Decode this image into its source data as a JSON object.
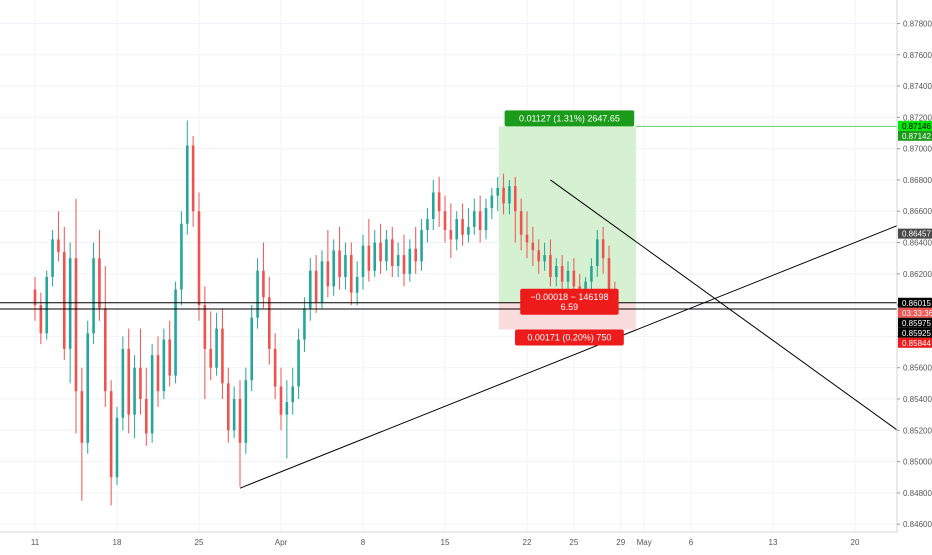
{
  "chart_data": {
    "type": "candlestick",
    "title": "",
    "colors": {
      "up": "#26a69a",
      "down": "#ef5350",
      "profit_zone": "#d6f0d2",
      "loss_zone": "#fbdcdc",
      "profit_label_bg": "#1a9c1a",
      "loss_label_bg": "#ee1b1b",
      "trendline": "#000000",
      "grid": "#f0f3fa",
      "axis_text": "#555555"
    },
    "y_axis": {
      "ylim": [
        0.8455,
        0.8795
      ],
      "tick_labels": [
        "0.87800",
        "0.87600",
        "0.87400",
        "0.87200",
        "0.87000",
        "0.86800",
        "0.86600",
        "0.86400",
        "0.86200",
        "0.86000",
        "0.85800",
        "0.85600",
        "0.85400",
        "0.85200",
        "0.85000",
        "0.84800",
        "0.84600"
      ],
      "tick_values": [
        0.878,
        0.876,
        0.874,
        0.872,
        0.87,
        0.868,
        0.866,
        0.864,
        0.862,
        0.86,
        0.858,
        0.856,
        0.854,
        0.852,
        0.85,
        0.848,
        0.846
      ]
    },
    "x_axis": {
      "labels": [
        "11",
        "18",
        "25",
        "Apr",
        "8",
        "15",
        "22",
        "25",
        "29",
        "May",
        "6",
        "13",
        "20"
      ],
      "label_positions_days": [
        0,
        7,
        14,
        21,
        28,
        35,
        42,
        46,
        50,
        52,
        56,
        63,
        70
      ]
    },
    "price_markers": [
      {
        "label": "0.87146",
        "value": 0.87146,
        "bg": "#00e600",
        "fg": "#000000"
      },
      {
        "label": "0.87142",
        "value": 0.87142,
        "bg": "#1a9c1a",
        "fg": "#ffffff"
      },
      {
        "label": "0.86457",
        "value": 0.86457,
        "bg": "#4a4a4a",
        "fg": "#ffffff"
      },
      {
        "label": "0.86015",
        "value": 0.86015,
        "bg": "#000000",
        "fg": "#ffffff"
      },
      {
        "label": "03:33:36",
        "value": 0.85965,
        "bg": "#ef5350",
        "fg": "#ffffff"
      },
      {
        "label": "0.85975",
        "value": 0.85975,
        "bg": "#000000",
        "fg": "#ffffff",
        "offset": 1
      },
      {
        "label": "0.85925",
        "value": 0.85925,
        "bg": "#000000",
        "fg": "#ffffff",
        "offset": 1
      },
      {
        "label": "0.85844",
        "value": 0.85844,
        "bg": "#ee1b1b",
        "fg": "#ffffff",
        "offset": 1
      }
    ],
    "horizontal_lines": [
      0.86015,
      0.85975
    ],
    "trendlines": [
      {
        "x1": 17.5,
        "y1": 0.8483,
        "x2": 74,
        "y2": 0.8652
      },
      {
        "x1": 44,
        "y1": 0.868,
        "x2": 74,
        "y2": 0.8518
      }
    ],
    "position": {
      "entry": 0.86015,
      "target": 0.87142,
      "stop": 0.85844,
      "start_day": 39.6,
      "end_day": 51.3,
      "profit_label": "0.01127 (1.31%) 2647.65",
      "current_label_line1": "−0.00018 ~ 146198",
      "current_label_line2": "6.59",
      "loss_label": "0.00171 (0.20%) 750"
    },
    "ohlc_series": [
      {
        "d": 0,
        "o": 0.861,
        "h": 0.8618,
        "c": 0.86,
        "l": 0.859
      },
      {
        "d": 0.5,
        "o": 0.86,
        "h": 0.8608,
        "c": 0.8582,
        "l": 0.8575
      },
      {
        "d": 1,
        "o": 0.8582,
        "h": 0.8622,
        "c": 0.8618,
        "l": 0.8578
      },
      {
        "d": 1.5,
        "o": 0.8618,
        "h": 0.8648,
        "c": 0.8642,
        "l": 0.8612
      },
      {
        "d": 2,
        "o": 0.8642,
        "h": 0.866,
        "c": 0.8634,
        "l": 0.8628
      },
      {
        "d": 2.5,
        "o": 0.8634,
        "h": 0.865,
        "c": 0.8572,
        "l": 0.8565
      },
      {
        "d": 3,
        "o": 0.8572,
        "h": 0.864,
        "c": 0.863,
        "l": 0.855
      },
      {
        "d": 3.5,
        "o": 0.863,
        "h": 0.8668,
        "c": 0.8545,
        "l": 0.8518
      },
      {
        "d": 4,
        "o": 0.8545,
        "h": 0.856,
        "c": 0.8512,
        "l": 0.8475
      },
      {
        "d": 4.5,
        "o": 0.8512,
        "h": 0.859,
        "c": 0.8582,
        "l": 0.8505
      },
      {
        "d": 5,
        "o": 0.8582,
        "h": 0.864,
        "c": 0.863,
        "l": 0.8575
      },
      {
        "d": 5.5,
        "o": 0.863,
        "h": 0.8648,
        "c": 0.8598,
        "l": 0.859
      },
      {
        "d": 6,
        "o": 0.8598,
        "h": 0.8625,
        "c": 0.8545,
        "l": 0.8535
      },
      {
        "d": 6.5,
        "o": 0.8545,
        "h": 0.8552,
        "c": 0.849,
        "l": 0.8472
      },
      {
        "d": 7,
        "o": 0.849,
        "h": 0.8535,
        "c": 0.8528,
        "l": 0.8485
      },
      {
        "d": 7.5,
        "o": 0.8528,
        "h": 0.858,
        "c": 0.8572,
        "l": 0.852
      },
      {
        "d": 8,
        "o": 0.8572,
        "h": 0.8585,
        "c": 0.853,
        "l": 0.8518
      },
      {
        "d": 8.5,
        "o": 0.853,
        "h": 0.8568,
        "c": 0.856,
        "l": 0.8515
      },
      {
        "d": 9,
        "o": 0.856,
        "h": 0.8585,
        "c": 0.854,
        "l": 0.853
      },
      {
        "d": 9.5,
        "o": 0.854,
        "h": 0.856,
        "c": 0.8518,
        "l": 0.851
      },
      {
        "d": 10,
        "o": 0.8518,
        "h": 0.8575,
        "c": 0.8568,
        "l": 0.8512
      },
      {
        "d": 10.5,
        "o": 0.8568,
        "h": 0.858,
        "c": 0.8545,
        "l": 0.8535
      },
      {
        "d": 11,
        "o": 0.8545,
        "h": 0.8585,
        "c": 0.8578,
        "l": 0.854
      },
      {
        "d": 11.5,
        "o": 0.8578,
        "h": 0.859,
        "c": 0.8555,
        "l": 0.8548
      },
      {
        "d": 12,
        "o": 0.8555,
        "h": 0.8615,
        "c": 0.861,
        "l": 0.855
      },
      {
        "d": 12.5,
        "o": 0.861,
        "h": 0.866,
        "c": 0.8652,
        "l": 0.86
      },
      {
        "d": 13,
        "o": 0.8652,
        "h": 0.8718,
        "c": 0.8702,
        "l": 0.8645
      },
      {
        "d": 13.5,
        "o": 0.8702,
        "h": 0.8708,
        "c": 0.866,
        "l": 0.865
      },
      {
        "d": 14,
        "o": 0.866,
        "h": 0.8672,
        "c": 0.86,
        "l": 0.859
      },
      {
        "d": 14.5,
        "o": 0.86,
        "h": 0.8612,
        "c": 0.8572,
        "l": 0.854
      },
      {
        "d": 15,
        "o": 0.8572,
        "h": 0.8596,
        "c": 0.856,
        "l": 0.8552
      },
      {
        "d": 15.5,
        "o": 0.856,
        "h": 0.8595,
        "c": 0.8585,
        "l": 0.8555
      },
      {
        "d": 16,
        "o": 0.8585,
        "h": 0.8598,
        "c": 0.855,
        "l": 0.854
      },
      {
        "d": 16.5,
        "o": 0.855,
        "h": 0.856,
        "c": 0.852,
        "l": 0.8512
      },
      {
        "d": 17,
        "o": 0.852,
        "h": 0.8548,
        "c": 0.854,
        "l": 0.8515
      },
      {
        "d": 17.5,
        "o": 0.854,
        "h": 0.8552,
        "c": 0.8512,
        "l": 0.8484
      },
      {
        "d": 18,
        "o": 0.8512,
        "h": 0.856,
        "c": 0.8552,
        "l": 0.8505
      },
      {
        "d": 18.5,
        "o": 0.8552,
        "h": 0.86,
        "c": 0.8592,
        "l": 0.8545
      },
      {
        "d": 19,
        "o": 0.8592,
        "h": 0.863,
        "c": 0.8622,
        "l": 0.8585
      },
      {
        "d": 19.5,
        "o": 0.8622,
        "h": 0.864,
        "c": 0.8605,
        "l": 0.8598
      },
      {
        "d": 20,
        "o": 0.8605,
        "h": 0.8618,
        "c": 0.8572,
        "l": 0.8562
      },
      {
        "d": 20.5,
        "o": 0.8572,
        "h": 0.8582,
        "c": 0.8548,
        "l": 0.854
      },
      {
        "d": 21,
        "o": 0.8548,
        "h": 0.856,
        "c": 0.853,
        "l": 0.852
      },
      {
        "d": 21.5,
        "o": 0.853,
        "h": 0.8552,
        "c": 0.8538,
        "l": 0.8502
      },
      {
        "d": 22,
        "o": 0.8538,
        "h": 0.856,
        "c": 0.8548,
        "l": 0.853
      },
      {
        "d": 22.5,
        "o": 0.8548,
        "h": 0.8585,
        "c": 0.8578,
        "l": 0.854
      },
      {
        "d": 23,
        "o": 0.8578,
        "h": 0.8605,
        "c": 0.8598,
        "l": 0.857
      },
      {
        "d": 23.5,
        "o": 0.8598,
        "h": 0.863,
        "c": 0.8622,
        "l": 0.859
      },
      {
        "d": 24,
        "o": 0.8622,
        "h": 0.8632,
        "c": 0.8602,
        "l": 0.8595
      },
      {
        "d": 24.5,
        "o": 0.8602,
        "h": 0.8635,
        "c": 0.8628,
        "l": 0.8598
      },
      {
        "d": 25,
        "o": 0.8628,
        "h": 0.8648,
        "c": 0.8612,
        "l": 0.8605
      },
      {
        "d": 25.5,
        "o": 0.8612,
        "h": 0.8642,
        "c": 0.8635,
        "l": 0.8606
      },
      {
        "d": 26,
        "o": 0.8635,
        "h": 0.865,
        "c": 0.8618,
        "l": 0.861
      },
      {
        "d": 26.5,
        "o": 0.8618,
        "h": 0.864,
        "c": 0.8632,
        "l": 0.861
      },
      {
        "d": 27,
        "o": 0.8632,
        "h": 0.864,
        "c": 0.8608,
        "l": 0.86
      },
      {
        "d": 27.5,
        "o": 0.8608,
        "h": 0.8628,
        "c": 0.8618,
        "l": 0.86
      },
      {
        "d": 28,
        "o": 0.8618,
        "h": 0.8645,
        "c": 0.8638,
        "l": 0.861
      },
      {
        "d": 28.5,
        "o": 0.8638,
        "h": 0.8655,
        "c": 0.8622,
        "l": 0.8615
      },
      {
        "d": 29,
        "o": 0.8622,
        "h": 0.8648,
        "c": 0.864,
        "l": 0.8618
      },
      {
        "d": 29.5,
        "o": 0.864,
        "h": 0.8652,
        "c": 0.8628,
        "l": 0.862
      },
      {
        "d": 30,
        "o": 0.8628,
        "h": 0.8648,
        "c": 0.8642,
        "l": 0.8622
      },
      {
        "d": 30.5,
        "o": 0.8642,
        "h": 0.865,
        "c": 0.8625,
        "l": 0.8618
      },
      {
        "d": 31,
        "o": 0.8625,
        "h": 0.864,
        "c": 0.8632,
        "l": 0.8618
      },
      {
        "d": 31.5,
        "o": 0.8632,
        "h": 0.8645,
        "c": 0.862,
        "l": 0.8612
      },
      {
        "d": 32,
        "o": 0.862,
        "h": 0.8642,
        "c": 0.8636,
        "l": 0.8615
      },
      {
        "d": 32.5,
        "o": 0.8636,
        "h": 0.865,
        "c": 0.8628,
        "l": 0.862
      },
      {
        "d": 33,
        "o": 0.8628,
        "h": 0.8655,
        "c": 0.8648,
        "l": 0.8622
      },
      {
        "d": 33.5,
        "o": 0.8648,
        "h": 0.8662,
        "c": 0.8655,
        "l": 0.864
      },
      {
        "d": 34,
        "o": 0.8655,
        "h": 0.868,
        "c": 0.8672,
        "l": 0.8648
      },
      {
        "d": 34.5,
        "o": 0.8672,
        "h": 0.8682,
        "c": 0.866,
        "l": 0.865
      },
      {
        "d": 35,
        "o": 0.866,
        "h": 0.867,
        "c": 0.8648,
        "l": 0.864
      },
      {
        "d": 35.5,
        "o": 0.8648,
        "h": 0.8665,
        "c": 0.8642,
        "l": 0.863
      },
      {
        "d": 36,
        "o": 0.8642,
        "h": 0.866,
        "c": 0.8655,
        "l": 0.8635
      },
      {
        "d": 36.5,
        "o": 0.8655,
        "h": 0.8665,
        "c": 0.8645,
        "l": 0.8638
      },
      {
        "d": 37,
        "o": 0.8645,
        "h": 0.8662,
        "c": 0.865,
        "l": 0.864
      },
      {
        "d": 37.5,
        "o": 0.865,
        "h": 0.8668,
        "c": 0.866,
        "l": 0.8645
      },
      {
        "d": 38,
        "o": 0.866,
        "h": 0.867,
        "c": 0.8648,
        "l": 0.864
      },
      {
        "d": 38.5,
        "o": 0.8648,
        "h": 0.8668,
        "c": 0.8662,
        "l": 0.8642
      },
      {
        "d": 39,
        "o": 0.8662,
        "h": 0.8675,
        "c": 0.867,
        "l": 0.8655
      },
      {
        "d": 39.5,
        "o": 0.867,
        "h": 0.8682,
        "c": 0.8675,
        "l": 0.866
      },
      {
        "d": 40,
        "o": 0.8675,
        "h": 0.8684,
        "c": 0.8665,
        "l": 0.8658
      },
      {
        "d": 40.5,
        "o": 0.8665,
        "h": 0.868,
        "c": 0.8676,
        "l": 0.8658
      },
      {
        "d": 41,
        "o": 0.8676,
        "h": 0.8682,
        "c": 0.866,
        "l": 0.864
      },
      {
        "d": 41.5,
        "o": 0.866,
        "h": 0.8668,
        "c": 0.8645,
        "l": 0.8635
      },
      {
        "d": 42,
        "o": 0.8645,
        "h": 0.866,
        "c": 0.864,
        "l": 0.863
      },
      {
        "d": 42.5,
        "o": 0.864,
        "h": 0.865,
        "c": 0.8635,
        "l": 0.8625
      },
      {
        "d": 43,
        "o": 0.8635,
        "h": 0.8642,
        "c": 0.8628,
        "l": 0.862
      },
      {
        "d": 43.5,
        "o": 0.8628,
        "h": 0.864,
        "c": 0.8632,
        "l": 0.8622
      },
      {
        "d": 44,
        "o": 0.8632,
        "h": 0.8642,
        "c": 0.8618,
        "l": 0.8612
      },
      {
        "d": 44.5,
        "o": 0.8618,
        "h": 0.863,
        "c": 0.8625,
        "l": 0.8612
      },
      {
        "d": 45,
        "o": 0.8625,
        "h": 0.8632,
        "c": 0.8615,
        "l": 0.8608
      },
      {
        "d": 45.5,
        "o": 0.8615,
        "h": 0.8628,
        "c": 0.8622,
        "l": 0.861
      },
      {
        "d": 46,
        "o": 0.8622,
        "h": 0.863,
        "c": 0.8612,
        "l": 0.8605
      },
      {
        "d": 46.5,
        "o": 0.8612,
        "h": 0.862,
        "c": 0.8605,
        "l": 0.8598
      },
      {
        "d": 47,
        "o": 0.8605,
        "h": 0.8618,
        "c": 0.8615,
        "l": 0.86
      },
      {
        "d": 47.5,
        "o": 0.8615,
        "h": 0.863,
        "c": 0.8625,
        "l": 0.8608
      },
      {
        "d": 48,
        "o": 0.8625,
        "h": 0.8648,
        "c": 0.8642,
        "l": 0.8618
      },
      {
        "d": 48.5,
        "o": 0.8642,
        "h": 0.865,
        "c": 0.863,
        "l": 0.862
      },
      {
        "d": 49,
        "o": 0.863,
        "h": 0.8638,
        "c": 0.861,
        "l": 0.8602
      },
      {
        "d": 49.5,
        "o": 0.861,
        "h": 0.8615,
        "c": 0.86,
        "l": 0.8595
      }
    ]
  }
}
